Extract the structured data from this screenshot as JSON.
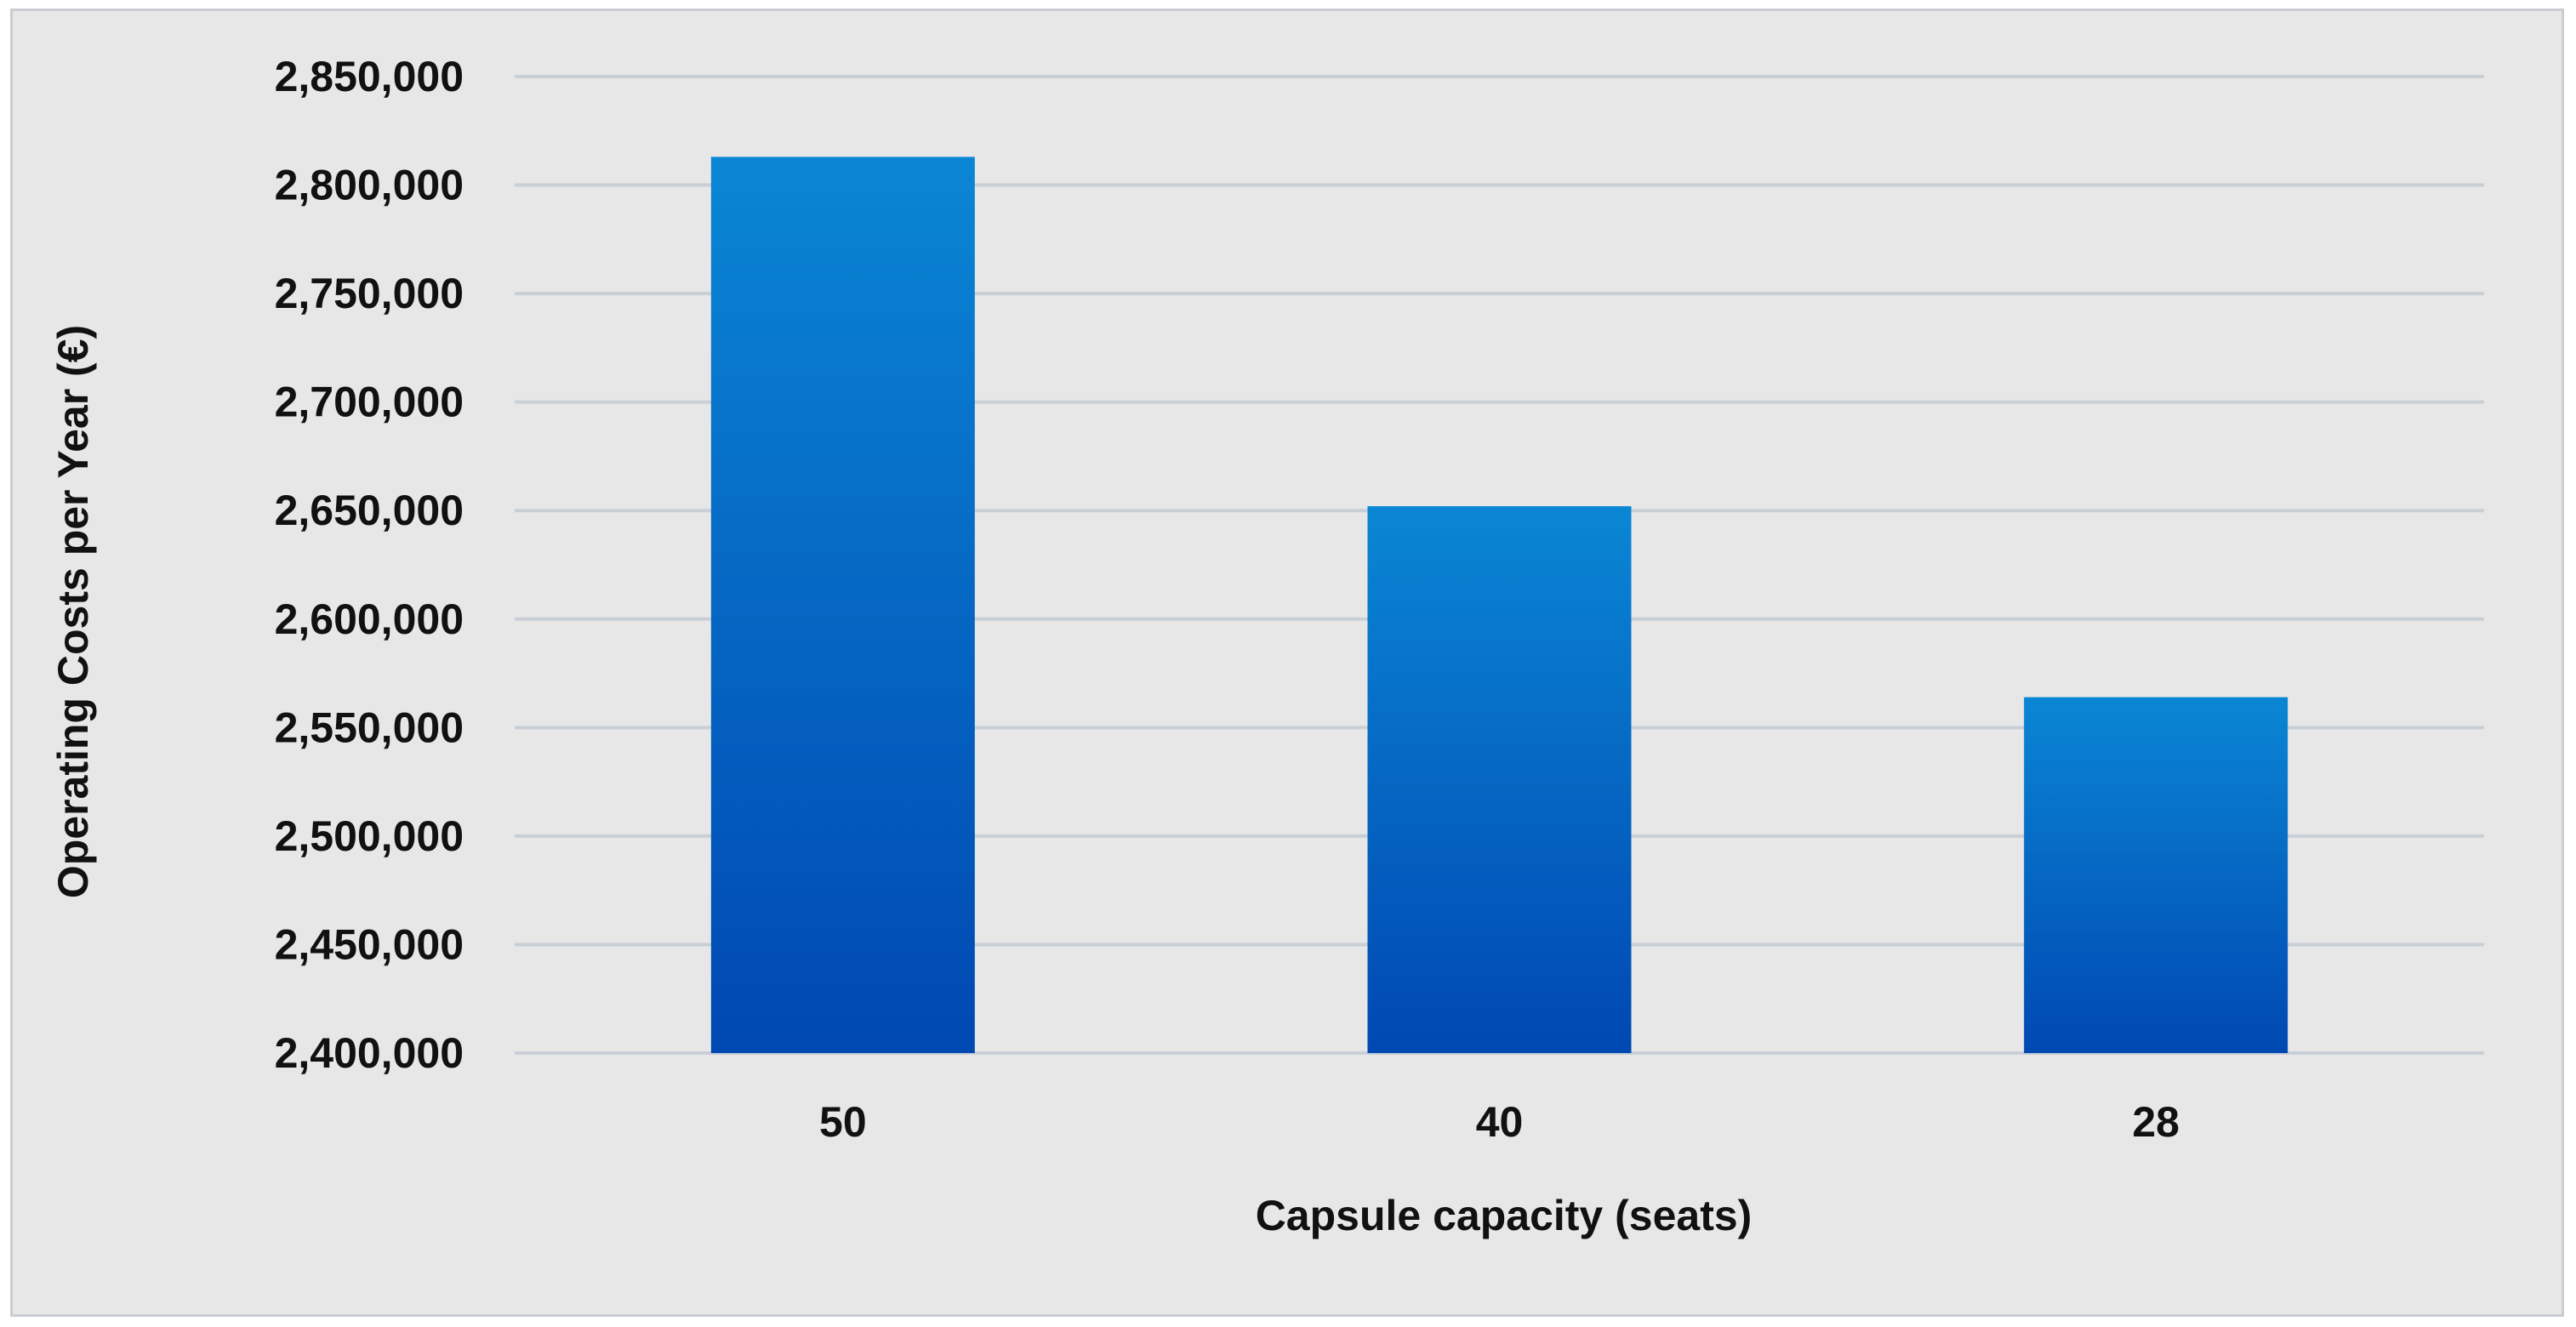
{
  "chart_data": {
    "type": "bar",
    "title": "",
    "xlabel": "Capsule capacity (seats)",
    "ylabel": "Operating Costs per Year  (€)",
    "categories": [
      "50",
      "40",
      "28"
    ],
    "values": [
      2813000,
      2652000,
      2564000
    ],
    "ylim": [
      2400000,
      2850000
    ],
    "yticks": [
      2400000,
      2450000,
      2500000,
      2550000,
      2600000,
      2650000,
      2700000,
      2750000,
      2800000,
      2850000
    ],
    "ytick_labels": [
      "2,400,000",
      "2,450,000",
      "2,500,000",
      "2,550,000",
      "2,600,000",
      "2,650,000",
      "2,700,000",
      "2,750,000",
      "2,800,000",
      "2,850,000"
    ],
    "grid": true,
    "legend": "none",
    "colors": {
      "bar_top": "#0a86d4",
      "bar_bottom": "#0048b2",
      "gridline": "#c8cfd6",
      "background": "#e7e7e7"
    }
  }
}
